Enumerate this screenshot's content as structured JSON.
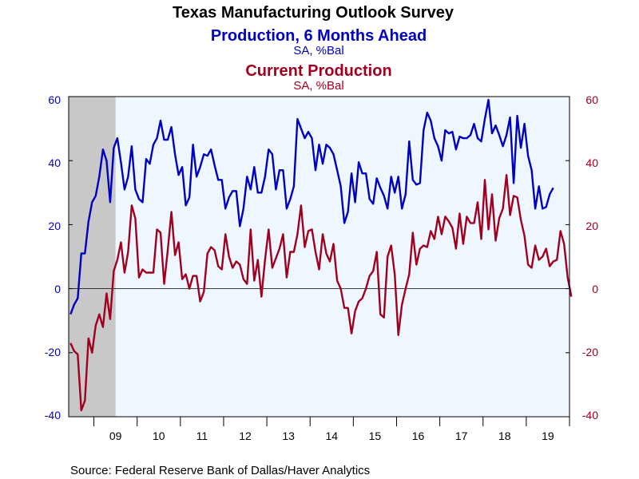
{
  "chart_data": {
    "type": "line",
    "title": "Texas Manufacturing Outlook Survey",
    "series_titles": [
      {
        "title": "Production, 6 Months Ahead",
        "subtitle": "SA, %Bal",
        "color": "#0000c0"
      },
      {
        "title": "Current Production",
        "subtitle": "SA, %Bal",
        "color": "#a0001e"
      }
    ],
    "source": "Source:  Federal Reserve Bank of Dallas/Haver Analytics",
    "x_tick_labels": [
      "09",
      "10",
      "11",
      "12",
      "13",
      "14",
      "15",
      "16",
      "17",
      "18",
      "19"
    ],
    "y_left_ticks": [
      "60",
      "40",
      "20",
      "0",
      "-20",
      "-40"
    ],
    "y_right_ticks": [
      "60",
      "40",
      "20",
      "0",
      "-20",
      "-40"
    ],
    "ylim": [
      -40,
      60
    ],
    "xlim": [
      "2008-06",
      "2019-12"
    ],
    "recession_shading": {
      "start": "2008-06",
      "end": "2009-06",
      "color": "#c8c8c8"
    },
    "plot_background": "#eef6ff",
    "zero_line": true,
    "series": [
      {
        "name": "Production, 6 Months Ahead",
        "color": "#0000c0",
        "start": "2008-06",
        "values": [
          -8,
          -5,
          -3,
          11,
          11,
          21,
          27,
          29,
          35,
          43.5,
          40,
          27,
          44,
          47,
          39.5,
          31,
          35,
          44.5,
          31,
          28,
          27,
          40.5,
          39,
          45,
          47,
          52.5,
          46.5,
          46.5,
          50.5,
          42,
          35.5,
          38,
          26,
          28.5,
          45,
          35,
          38,
          42,
          41.5,
          43.5,
          38.5,
          34,
          34,
          25,
          28.5,
          30.5,
          30.5,
          19.5,
          25,
          35,
          31,
          38,
          30,
          30,
          35,
          43.5,
          42,
          31,
          37,
          37,
          25,
          28,
          32,
          53,
          50,
          47,
          49,
          47,
          37,
          45,
          39,
          45,
          44,
          42,
          37,
          32,
          20.5,
          24,
          36,
          27,
          39.5,
          36,
          36,
          28,
          26.5,
          34.5,
          31.5,
          29,
          25,
          35,
          30,
          35,
          25,
          29.5,
          46,
          34,
          32.5,
          33,
          49.5,
          55,
          52.5,
          47,
          44.5,
          40,
          49.5,
          48.5,
          49,
          43.5,
          47.5,
          47,
          47,
          48,
          51.5,
          47,
          46,
          53,
          59,
          48.5,
          51,
          48,
          44.5,
          48,
          53.5,
          33,
          54,
          44,
          51.5,
          41.5,
          37,
          25,
          32,
          25,
          25.5,
          29.5,
          31.5
        ]
      },
      {
        "name": "Current Production",
        "color": "#a0001e",
        "start": "2008-06",
        "values": [
          -17,
          -19.5,
          -20.5,
          -38,
          -35,
          -15.5,
          -20,
          -11.5,
          -8,
          -12,
          -1.5,
          -9.5,
          5.5,
          9,
          14.5,
          5,
          11.5,
          26,
          22,
          3.5,
          6,
          5,
          5,
          5,
          18.5,
          17.5,
          1.5,
          12,
          24,
          10.5,
          14.5,
          3,
          4.5,
          0,
          4,
          4,
          -4,
          -1,
          11,
          13,
          12,
          7,
          6,
          17,
          10,
          6.5,
          8.5,
          7.5,
          3,
          1.5,
          18.5,
          2.5,
          9,
          -2.5,
          9,
          18.5,
          6.5,
          9.5,
          12.5,
          17,
          3.5,
          11.5,
          11.5,
          17,
          26,
          13,
          18,
          18.5,
          11.5,
          6,
          17,
          11,
          8.5,
          14,
          2.5,
          0,
          -6,
          -6,
          -14,
          -7,
          -4,
          -3,
          0,
          4,
          5.5,
          11.5,
          -8,
          -9,
          10,
          13.5,
          4.5,
          -14.5,
          -5,
          0,
          4.5,
          17.5,
          7.5,
          12.5,
          13.5,
          13,
          18,
          15.5,
          22.5,
          17,
          22.5,
          21,
          19,
          12.5,
          23.5,
          14,
          22.5,
          20.5,
          20.5,
          27,
          15.5,
          34,
          18.5,
          29.5,
          15,
          22,
          25,
          35.5,
          23,
          29,
          28.5,
          21.5,
          16.5,
          7.5,
          6.5,
          13.5,
          9,
          10,
          12.5,
          7,
          8.5,
          9,
          18,
          14,
          3.5,
          -2.5
        ]
      }
    ]
  }
}
